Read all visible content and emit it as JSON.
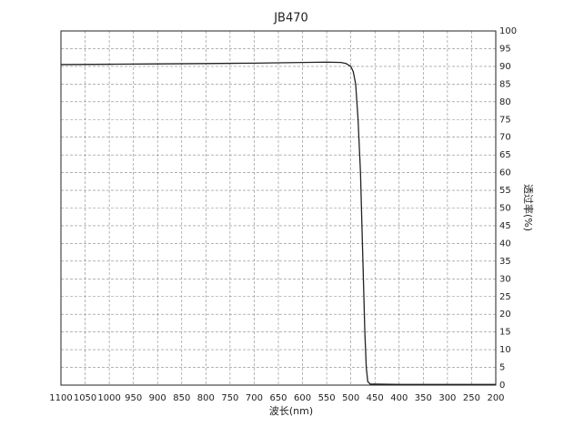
{
  "chart_data": {
    "type": "line",
    "title": "JB470",
    "x_label": "波长(nm)",
    "y_label": "透过率(%)",
    "x": [
      1100,
      1000,
      900,
      800,
      700,
      600,
      550,
      520,
      510,
      500,
      495,
      490,
      485,
      480,
      477,
      474,
      471,
      468,
      465,
      460,
      400,
      300,
      200
    ],
    "series": [
      {
        "color": "#222222",
        "values": [
          90.5,
          90.6,
          90.7,
          90.8,
          90.9,
          91.1,
          91.2,
          91.1,
          90.8,
          90,
          88.5,
          85,
          75,
          60,
          45,
          30,
          15,
          5,
          1,
          0.3,
          0.2,
          0.2,
          0.2
        ]
      }
    ],
    "xlim": [
      1100,
      200
    ],
    "xticks": [
      1100,
      1050,
      1000,
      950,
      900,
      850,
      800,
      750,
      700,
      650,
      600,
      550,
      500,
      450,
      400,
      350,
      300,
      250,
      200
    ],
    "ylim": [
      0,
      100
    ],
    "yticks": [
      0,
      5,
      10,
      15,
      20,
      25,
      30,
      35,
      40,
      45,
      50,
      55,
      60,
      65,
      70,
      75,
      80,
      85,
      90,
      95,
      100
    ],
    "y_axis_side": "right",
    "grid": true
  }
}
